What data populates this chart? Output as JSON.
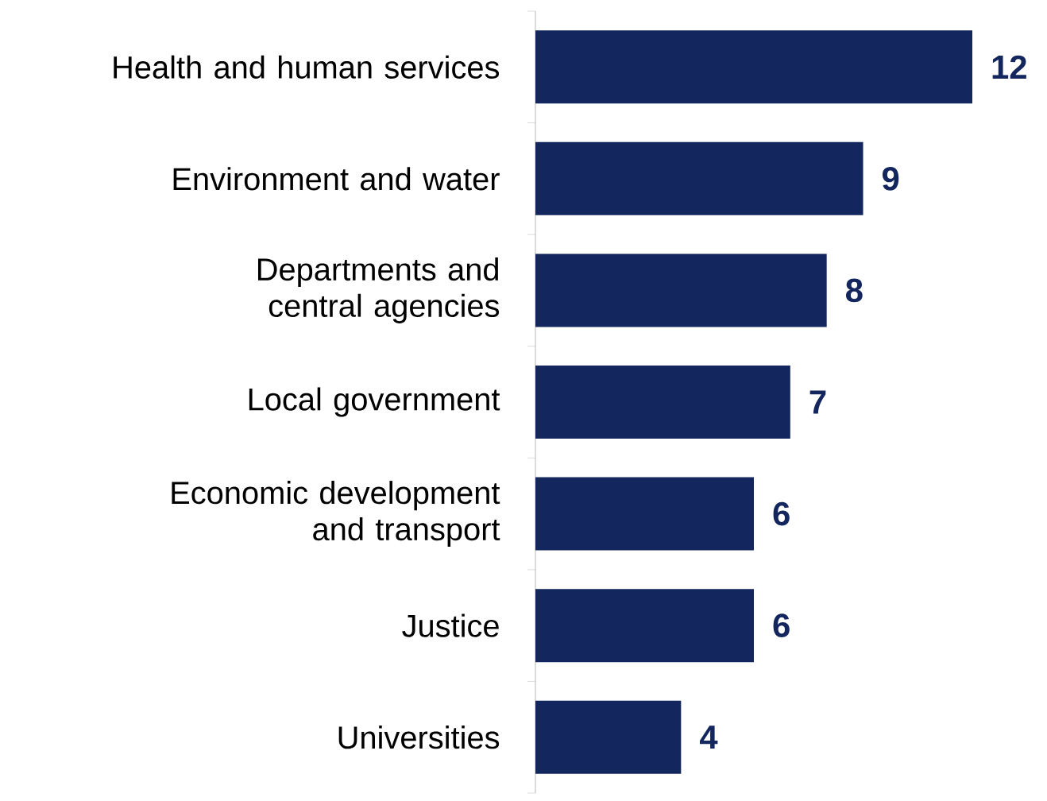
{
  "chart_data": {
    "type": "bar",
    "orientation": "horizontal",
    "categories": [
      "Health and human services",
      "Environment and water",
      "Departments and central agencies",
      "Local government",
      "Economic development and transport",
      "Justice",
      "Universities"
    ],
    "values": [
      12,
      9,
      8,
      7,
      6,
      6,
      4
    ],
    "color": "#13275e",
    "data_labels": true
  }
}
